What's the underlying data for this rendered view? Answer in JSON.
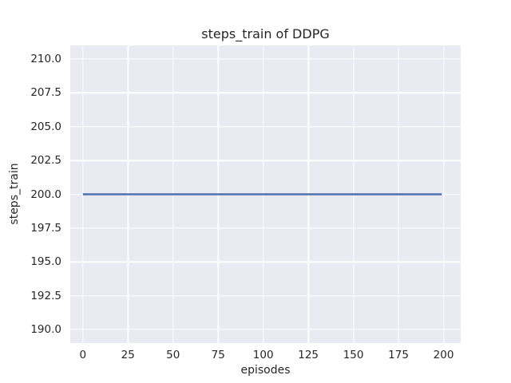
{
  "chart_data": {
    "type": "line",
    "title": "steps_train of DDPG",
    "xlabel": "episodes",
    "ylabel": "steps_train",
    "xlim": [
      -7,
      209.5
    ],
    "ylim": [
      189,
      211
    ],
    "grid": true,
    "legend": false,
    "style": "seaborn-darkgrid",
    "xticks": {
      "values": [
        0,
        25,
        50,
        75,
        100,
        125,
        150,
        175,
        200
      ],
      "labels": [
        "0",
        "25",
        "50",
        "75",
        "100",
        "125",
        "150",
        "175",
        "200"
      ]
    },
    "yticks": {
      "values": [
        190.0,
        192.5,
        195.0,
        197.5,
        200.0,
        202.5,
        205.0,
        207.5,
        210.0
      ],
      "labels": [
        "190.0",
        "192.5",
        "195.0",
        "197.5",
        "200.0",
        "202.5",
        "205.0",
        "207.5",
        "210.0"
      ]
    },
    "series": [
      {
        "name": "steps_train",
        "color": "#4C72B0",
        "linewidth": 2.4,
        "x": [
          0,
          199
        ],
        "y": [
          200,
          200
        ],
        "note": "constant value 200 for all episodes 0-199"
      }
    ],
    "colors": {
      "figure_bg": "#FFFFFF",
      "plot_bg": "#EAEAF2",
      "grid": "#FFFFFF",
      "text": "#262626",
      "line": "#4C72B0"
    }
  }
}
